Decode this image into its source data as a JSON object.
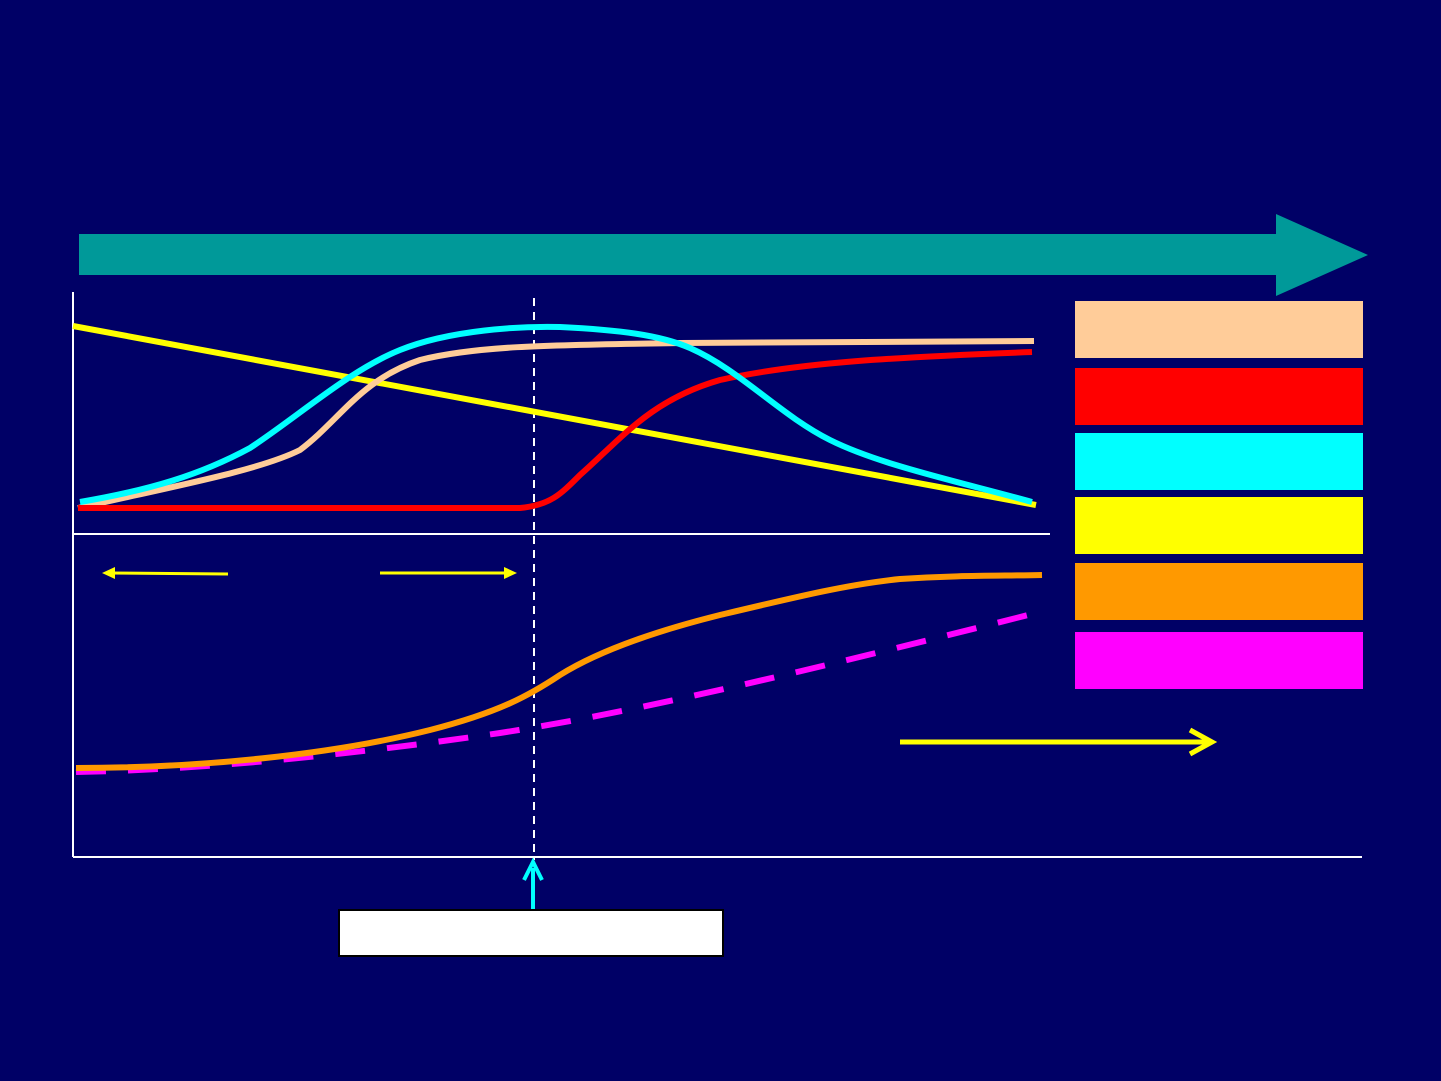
{
  "colors": {
    "background": "#000066",
    "timeline_arrow": "#009999",
    "axes": "#ffffff",
    "series_peach": "#ffcc99",
    "series_red": "#ff0000",
    "series_cyan": "#00ffff",
    "series_yellow": "#ffff00",
    "series_orange": "#ff9900",
    "series_magenta": "#ff00ff"
  },
  "legend": [
    {
      "color": "#ffcc99"
    },
    {
      "color": "#ff0000"
    },
    {
      "color": "#00ffff"
    },
    {
      "color": "#ffff00"
    },
    {
      "color": "#ff9900"
    },
    {
      "color": "#ff00ff"
    }
  ]
}
